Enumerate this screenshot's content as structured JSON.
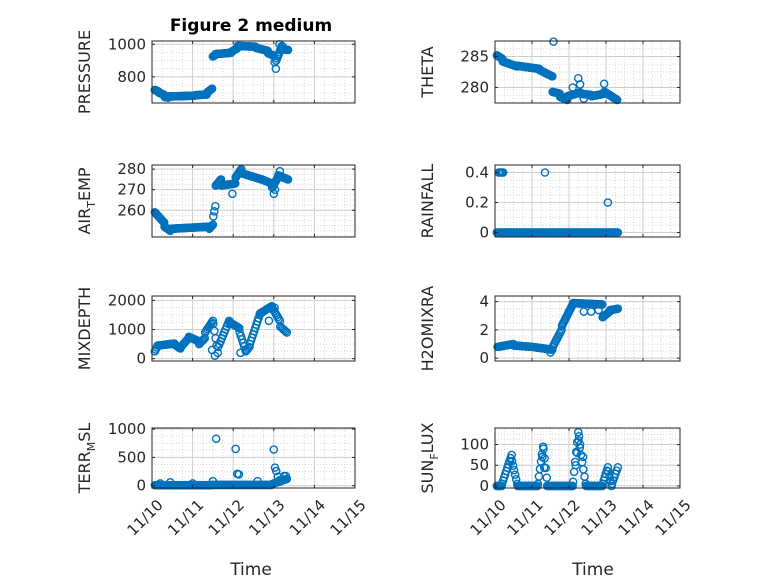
{
  "figure": {
    "title": "Figure 2 medium",
    "x_axis_label": "Time",
    "x_tick_labels": [
      "11/10",
      "11/11",
      "11/12",
      "11/13",
      "11/14",
      "11/15"
    ]
  },
  "style": {
    "marker_color": "#0072BD",
    "grid_color": "#d9d9d9",
    "axis_color": "#262626"
  },
  "chart_data": [
    {
      "type": "scatter",
      "ylabel": "PRESSURE",
      "ylim": [
        640,
        1020
      ],
      "yticks": [
        800,
        1000
      ],
      "xlim": [
        "11/10",
        "11/15"
      ],
      "x_day_range": [
        0,
        4.5
      ],
      "grid": true,
      "segments": [
        {
          "x0": 0.07,
          "x1": 0.15,
          "y0": 720,
          "y1": 712,
          "n": 7
        },
        {
          "x0": 0.16,
          "x1": 0.3,
          "y0": 705,
          "y1": 690,
          "n": 10
        },
        {
          "x0": 0.31,
          "x1": 0.4,
          "y0": 678,
          "y1": 673,
          "n": 6
        },
        {
          "x0": 0.41,
          "x1": 1.05,
          "y0": 680,
          "y1": 685,
          "n": 40
        },
        {
          "x0": 1.06,
          "x1": 1.35,
          "y0": 688,
          "y1": 692,
          "n": 18
        },
        {
          "x0": 1.36,
          "x1": 1.48,
          "y0": 705,
          "y1": 728,
          "n": 8
        },
        {
          "x0": 1.5,
          "x1": 1.56,
          "y0": 925,
          "y1": 935,
          "n": 4
        },
        {
          "x0": 1.57,
          "x1": 1.95,
          "y0": 940,
          "y1": 948,
          "n": 22
        },
        {
          "x0": 1.96,
          "x1": 2.1,
          "y0": 955,
          "y1": 975,
          "n": 8
        },
        {
          "x0": 2.11,
          "x1": 2.55,
          "y0": 990,
          "y1": 985,
          "n": 25
        },
        {
          "x0": 2.56,
          "x1": 2.85,
          "y0": 978,
          "y1": 960,
          "n": 16
        },
        {
          "x0": 2.86,
          "x1": 3.0,
          "y0": 945,
          "y1": 930,
          "n": 6
        },
        {
          "x0": 3.02,
          "x1": 3.05,
          "y0": 890,
          "y1": 850,
          "n": 2
        },
        {
          "x0": 3.06,
          "x1": 3.2,
          "y0": 900,
          "y1": 990,
          "n": 8
        },
        {
          "x0": 3.21,
          "x1": 3.35,
          "y0": 970,
          "y1": 965,
          "n": 8
        }
      ],
      "extra_points": [
        {
          "x": 3.1,
          "y": 930
        },
        {
          "x": 3.14,
          "y": 1000
        },
        {
          "x": 3.22,
          "y": 985
        }
      ]
    },
    {
      "type": "scatter",
      "ylabel": "THETA",
      "ylim": [
        277.5,
        287.5
      ],
      "yticks": [
        280,
        285
      ],
      "xlim": [
        "11/10",
        "11/15"
      ],
      "x_day_range": [
        0,
        4.5
      ],
      "grid": true,
      "segments": [
        {
          "x0": 0.05,
          "x1": 0.2,
          "y0": 285.2,
          "y1": 284.6,
          "n": 8
        },
        {
          "x0": 0.21,
          "x1": 0.6,
          "y0": 284.2,
          "y1": 283.4,
          "n": 22
        },
        {
          "x0": 0.61,
          "x1": 1.2,
          "y0": 283.5,
          "y1": 283.0,
          "n": 32
        },
        {
          "x0": 1.21,
          "x1": 1.55,
          "y0": 282.8,
          "y1": 281.8,
          "n": 18
        },
        {
          "x0": 1.56,
          "x1": 1.75,
          "y0": 279.3,
          "y1": 279.0,
          "n": 9
        },
        {
          "x0": 1.76,
          "x1": 1.95,
          "y0": 278.5,
          "y1": 278.0,
          "n": 9
        },
        {
          "x0": 1.96,
          "x1": 2.3,
          "y0": 278.6,
          "y1": 279.2,
          "n": 16
        },
        {
          "x0": 2.31,
          "x1": 2.6,
          "y0": 279.0,
          "y1": 278.8,
          "n": 14
        },
        {
          "x0": 2.61,
          "x1": 2.95,
          "y0": 278.6,
          "y1": 279.0,
          "n": 16
        },
        {
          "x0": 2.96,
          "x1": 3.3,
          "y0": 279.3,
          "y1": 278.0,
          "n": 18
        }
      ],
      "extra_points": [
        {
          "x": 1.58,
          "y": 287.4
        },
        {
          "x": 2.25,
          "y": 281.5
        },
        {
          "x": 2.3,
          "y": 280.5
        },
        {
          "x": 2.1,
          "y": 280.0
        },
        {
          "x": 2.95,
          "y": 280.6
        },
        {
          "x": 2.4,
          "y": 278.2
        }
      ]
    },
    {
      "type": "scatter",
      "ylabel": "AIR_TEMP",
      "ylim": [
        247,
        282
      ],
      "yticks": [
        260,
        270,
        280
      ],
      "xlim": [
        "11/10",
        "11/15"
      ],
      "x_day_range": [
        0,
        4.5
      ],
      "grid": true,
      "segments": [
        {
          "x0": 0.07,
          "x1": 0.3,
          "y0": 259,
          "y1": 254,
          "n": 12
        },
        {
          "x0": 0.31,
          "x1": 0.45,
          "y0": 252,
          "y1": 250,
          "n": 7
        },
        {
          "x0": 0.46,
          "x1": 1.4,
          "y0": 251,
          "y1": 252,
          "n": 50
        },
        {
          "x0": 1.41,
          "x1": 1.5,
          "y0": 251,
          "y1": 253,
          "n": 5
        },
        {
          "x0": 1.51,
          "x1": 1.56,
          "y0": 257,
          "y1": 262,
          "n": 3
        },
        {
          "x0": 1.57,
          "x1": 1.7,
          "y0": 272,
          "y1": 275,
          "n": 7
        },
        {
          "x0": 1.71,
          "x1": 2.05,
          "y0": 272,
          "y1": 273,
          "n": 18
        },
        {
          "x0": 2.06,
          "x1": 2.2,
          "y0": 276,
          "y1": 280,
          "n": 8
        },
        {
          "x0": 2.21,
          "x1": 2.7,
          "y0": 278,
          "y1": 275,
          "n": 28
        },
        {
          "x0": 2.71,
          "x1": 2.95,
          "y0": 275,
          "y1": 273,
          "n": 12
        },
        {
          "x0": 2.96,
          "x1": 3.1,
          "y0": 271,
          "y1": 276,
          "n": 8
        },
        {
          "x0": 3.11,
          "x1": 3.35,
          "y0": 277,
          "y1": 275,
          "n": 12
        }
      ],
      "extra_points": [
        {
          "x": 1.98,
          "y": 268
        },
        {
          "x": 3.0,
          "y": 268
        },
        {
          "x": 3.03,
          "y": 270
        },
        {
          "x": 3.15,
          "y": 279
        }
      ]
    },
    {
      "type": "scatter",
      "ylabel": "RAINFALL",
      "ylim": [
        -0.03,
        0.45
      ],
      "yticks": [
        0,
        0.2,
        0.4
      ],
      "xlim": [
        "11/10",
        "11/15"
      ],
      "x_day_range": [
        0,
        4.5
      ],
      "grid": true,
      "segments": [
        {
          "x0": 0.05,
          "x1": 3.32,
          "y0": 0,
          "y1": 0,
          "n": 180
        }
      ],
      "extra_points": [
        {
          "x": 0.1,
          "y": 0.4
        },
        {
          "x": 0.13,
          "y": 0.4
        },
        {
          "x": 0.16,
          "y": 0.4
        },
        {
          "x": 0.19,
          "y": 0.4
        },
        {
          "x": 0.22,
          "y": 0.4
        },
        {
          "x": 1.35,
          "y": 0.4
        },
        {
          "x": 3.05,
          "y": 0.2
        }
      ]
    },
    {
      "type": "scatter",
      "ylabel": "MIXDEPTH",
      "ylim": [
        -80,
        2150
      ],
      "yticks": [
        0,
        1000,
        2000
      ],
      "xlim": [
        "11/10",
        "11/15"
      ],
      "x_day_range": [
        0,
        4.5
      ],
      "grid": true,
      "segments": [
        {
          "x0": 0.07,
          "x1": 0.14,
          "y0": 250,
          "y1": 450,
          "n": 4
        },
        {
          "x0": 0.15,
          "x1": 0.55,
          "y0": 450,
          "y1": 520,
          "n": 16
        },
        {
          "x0": 0.56,
          "x1": 0.7,
          "y0": 480,
          "y1": 350,
          "n": 6
        },
        {
          "x0": 0.71,
          "x1": 0.9,
          "y0": 400,
          "y1": 700,
          "n": 8
        },
        {
          "x0": 0.91,
          "x1": 1.15,
          "y0": 750,
          "y1": 600,
          "n": 10
        },
        {
          "x0": 1.16,
          "x1": 1.3,
          "y0": 500,
          "y1": 700,
          "n": 6
        },
        {
          "x0": 1.31,
          "x1": 1.5,
          "y0": 900,
          "y1": 1300,
          "n": 8
        },
        {
          "x0": 1.51,
          "x1": 1.62,
          "y0": 1200,
          "y1": 200,
          "n": 5
        },
        {
          "x0": 1.63,
          "x1": 1.9,
          "y0": 400,
          "y1": 1300,
          "n": 10
        },
        {
          "x0": 1.91,
          "x1": 2.15,
          "y0": 1250,
          "y1": 1050,
          "n": 10
        },
        {
          "x0": 2.16,
          "x1": 2.3,
          "y0": 900,
          "y1": 300,
          "n": 6
        },
        {
          "x0": 2.31,
          "x1": 2.4,
          "y0": 250,
          "y1": 400,
          "n": 4
        },
        {
          "x0": 2.41,
          "x1": 2.65,
          "y0": 500,
          "y1": 1500,
          "n": 10
        },
        {
          "x0": 2.66,
          "x1": 2.95,
          "y0": 1550,
          "y1": 1800,
          "n": 12
        },
        {
          "x0": 2.96,
          "x1": 3.15,
          "y0": 1750,
          "y1": 1300,
          "n": 8
        },
        {
          "x0": 3.16,
          "x1": 3.32,
          "y0": 1100,
          "y1": 900,
          "n": 6
        }
      ],
      "extra_points": [
        {
          "x": 1.55,
          "y": 100
        },
        {
          "x": 1.48,
          "y": 300
        },
        {
          "x": 2.18,
          "y": 200
        },
        {
          "x": 2.88,
          "y": 1300
        },
        {
          "x": 3.02,
          "y": 1750
        }
      ]
    },
    {
      "type": "scatter",
      "ylabel": "H2OMIXRA",
      "ylim": [
        -0.2,
        4.4
      ],
      "yticks": [
        0,
        2,
        4
      ],
      "xlim": [
        "11/10",
        "11/15"
      ],
      "x_day_range": [
        0,
        4.5
      ],
      "grid": true,
      "segments": [
        {
          "x0": 0.07,
          "x1": 0.5,
          "y0": 0.8,
          "y1": 1.0,
          "n": 18
        },
        {
          "x0": 0.51,
          "x1": 1.0,
          "y0": 0.9,
          "y1": 0.8,
          "n": 22
        },
        {
          "x0": 1.01,
          "x1": 1.55,
          "y0": 0.8,
          "y1": 0.6,
          "n": 22
        },
        {
          "x0": 1.56,
          "x1": 1.8,
          "y0": 0.8,
          "y1": 2.0,
          "n": 10
        },
        {
          "x0": 1.81,
          "x1": 2.1,
          "y0": 2.3,
          "y1": 3.8,
          "n": 14
        },
        {
          "x0": 2.11,
          "x1": 2.9,
          "y0": 3.9,
          "y1": 3.8,
          "n": 40
        },
        {
          "x0": 2.91,
          "x1": 3.1,
          "y0": 2.9,
          "y1": 3.3,
          "n": 8
        },
        {
          "x0": 3.11,
          "x1": 3.32,
          "y0": 3.4,
          "y1": 3.5,
          "n": 10
        }
      ],
      "extra_points": [
        {
          "x": 1.5,
          "y": 0.4
        },
        {
          "x": 2.0,
          "y": 3.3
        },
        {
          "x": 2.4,
          "y": 3.3
        },
        {
          "x": 2.6,
          "y": 3.3
        },
        {
          "x": 2.8,
          "y": 3.4
        }
      ]
    },
    {
      "type": "scatter",
      "ylabel": "TERR_MSL",
      "ylim": [
        -40,
        1020
      ],
      "yticks": [
        0,
        500,
        1000
      ],
      "xlim": [
        "11/10",
        "11/15"
      ],
      "x_day_range": [
        0,
        4.5
      ],
      "grid": true,
      "segments": [
        {
          "x0": 0.07,
          "x1": 1.45,
          "y0": 10,
          "y1": 10,
          "n": 70
        },
        {
          "x0": 1.46,
          "x1": 2.95,
          "y0": 15,
          "y1": 15,
          "n": 70
        },
        {
          "x0": 2.96,
          "x1": 3.32,
          "y0": 30,
          "y1": 120,
          "n": 14
        }
      ],
      "extra_points": [
        {
          "x": 0.2,
          "y": 40
        },
        {
          "x": 0.45,
          "y": 60
        },
        {
          "x": 1.0,
          "y": 40
        },
        {
          "x": 1.5,
          "y": 80
        },
        {
          "x": 1.58,
          "y": 830
        },
        {
          "x": 2.06,
          "y": 650
        },
        {
          "x": 2.1,
          "y": 210
        },
        {
          "x": 2.14,
          "y": 200
        },
        {
          "x": 2.6,
          "y": 80
        },
        {
          "x": 3.0,
          "y": 640
        },
        {
          "x": 3.03,
          "y": 320
        },
        {
          "x": 3.06,
          "y": 260
        },
        {
          "x": 3.1,
          "y": 160
        },
        {
          "x": 3.15,
          "y": 100
        },
        {
          "x": 3.25,
          "y": 170
        },
        {
          "x": 3.3,
          "y": 170
        }
      ]
    },
    {
      "type": "scatter",
      "ylabel": "SUN_FLUX",
      "ylim": [
        -5,
        140
      ],
      "yticks": [
        0,
        50,
        100
      ],
      "xlim": [
        "11/10",
        "11/15"
      ],
      "x_day_range": [
        0,
        4.5
      ],
      "grid": true,
      "segments": [
        {
          "x0": 0.05,
          "x1": 0.18,
          "y0": 0,
          "y1": 0,
          "n": 6
        },
        {
          "x0": 0.19,
          "x1": 0.45,
          "y0": 5,
          "y1": 75,
          "n": 10
        },
        {
          "x0": 0.46,
          "x1": 0.6,
          "y0": 60,
          "y1": 5,
          "n": 6
        },
        {
          "x0": 0.61,
          "x1": 1.15,
          "y0": 0,
          "y1": 0,
          "n": 22
        },
        {
          "x0": 1.16,
          "x1": 1.3,
          "y0": 5,
          "y1": 95,
          "n": 6
        },
        {
          "x0": 1.31,
          "x1": 1.4,
          "y0": 90,
          "y1": 20,
          "n": 4
        },
        {
          "x0": 1.41,
          "x1": 2.1,
          "y0": 0,
          "y1": 0,
          "n": 28
        },
        {
          "x0": 2.11,
          "x1": 2.25,
          "y0": 10,
          "y1": 130,
          "n": 6
        },
        {
          "x0": 2.26,
          "x1": 2.45,
          "y0": 110,
          "y1": 5,
          "n": 7
        },
        {
          "x0": 2.46,
          "x1": 2.9,
          "y0": 0,
          "y1": 0,
          "n": 18
        },
        {
          "x0": 2.91,
          "x1": 3.05,
          "y0": 5,
          "y1": 45,
          "n": 6
        },
        {
          "x0": 3.06,
          "x1": 3.15,
          "y0": 35,
          "y1": 0,
          "n": 4
        },
        {
          "x0": 3.16,
          "x1": 3.32,
          "y0": 5,
          "y1": 45,
          "n": 6
        }
      ],
      "extra_points": [
        {
          "x": 0.4,
          "y": 60
        },
        {
          "x": 1.28,
          "y": 70
        },
        {
          "x": 1.33,
          "y": 45
        },
        {
          "x": 2.18,
          "y": 50
        },
        {
          "x": 2.22,
          "y": 80
        },
        {
          "x": 2.27,
          "y": 120
        },
        {
          "x": 2.3,
          "y": 100
        },
        {
          "x": 2.38,
          "y": 70
        }
      ]
    }
  ]
}
